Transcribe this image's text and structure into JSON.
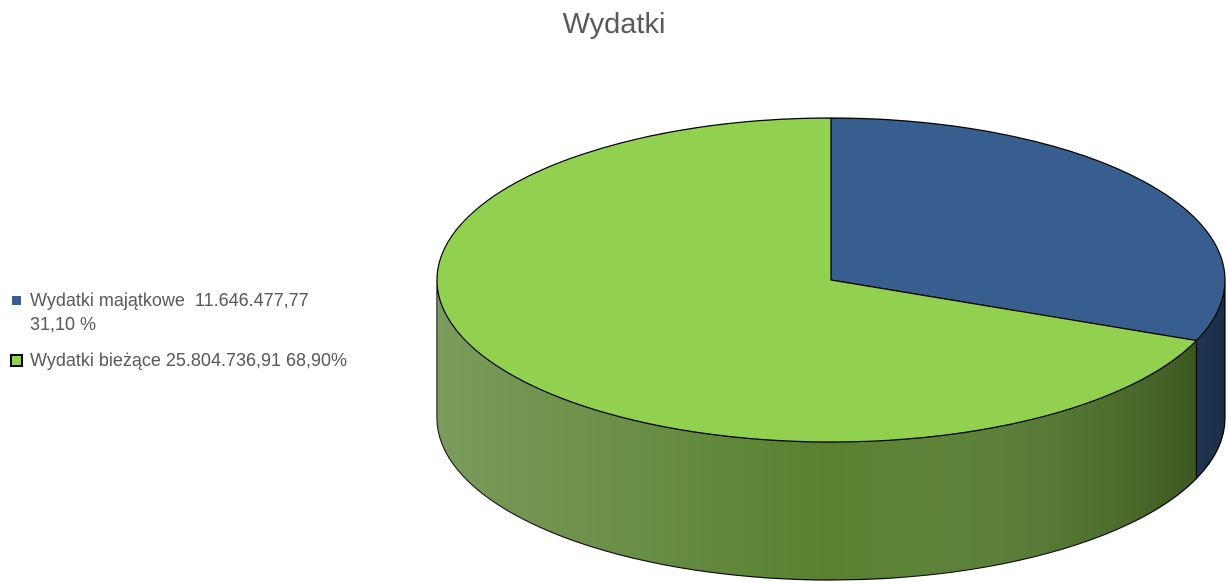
{
  "chart_data": {
    "type": "pie3d",
    "title": "Wydatki",
    "categories": [
      "Wydatki majątkowe  11.646.477,77 31,10 %",
      "Wydatki bieżące 25.804.736,91 68,90%"
    ],
    "values": [
      31.1,
      68.9
    ],
    "colors": [
      "#375e8f",
      "#92d050"
    ],
    "side_colors": [
      "#27466f",
      "#4f7a25"
    ]
  }
}
